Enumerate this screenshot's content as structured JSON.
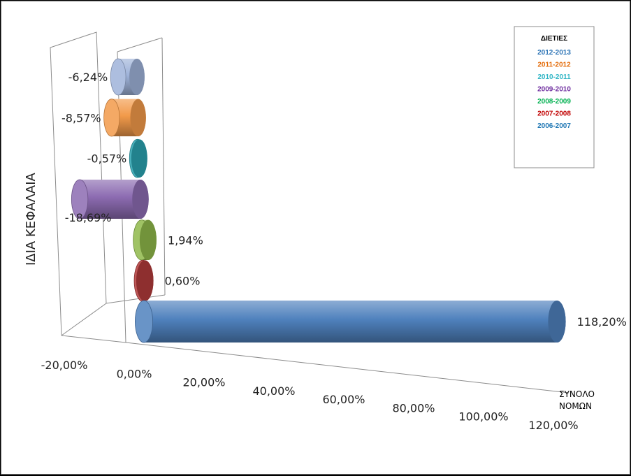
{
  "chart_data": {
    "type": "bar",
    "orientation": "horizontal",
    "style": "3d-cylinder",
    "category": "ΣΥΝΟΛΟ ΝΟΜΩΝ",
    "ylabel": "ΙΔΙΑ ΚΕΦΑΛΑΙΑ",
    "xlim": [
      -20,
      120
    ],
    "x_ticks": [
      "-20,00%",
      "0,00%",
      "20,00%",
      "40,00%",
      "60,00%",
      "80,00%",
      "100,00%",
      "120,00%"
    ],
    "legend": {
      "title": "ΔΙΕΤΙΕΣ",
      "position": "top-right"
    },
    "grid": false,
    "series": [
      {
        "name": "2012-2013",
        "value": -6.24,
        "label": "-6,24%",
        "color": "#9fb3d9"
      },
      {
        "name": "2011-2012",
        "value": -8.57,
        "label": "-8,57%",
        "color": "#f29a4a"
      },
      {
        "name": "2010-2011",
        "value": -0.57,
        "label": "-0,57%",
        "color": "#2aa3b0"
      },
      {
        "name": "2009-2010",
        "value": -18.69,
        "label": "-18,69%",
        "color": "#8c6bb1"
      },
      {
        "name": "2008-2009",
        "value": 1.94,
        "label": "1,94%",
        "color": "#8fb84a"
      },
      {
        "name": "2007-2008",
        "value": 0.6,
        "label": "0,60%",
        "color": "#b23b3b"
      },
      {
        "name": "2006-2007",
        "value": 118.2,
        "label": "118,20%",
        "color": "#4f81bd"
      }
    ],
    "legend_colors": [
      "#2e75b6",
      "#e46c0a",
      "#31b6c6",
      "#7030a0",
      "#00b050",
      "#c00000",
      "#1f77b4"
    ]
  }
}
